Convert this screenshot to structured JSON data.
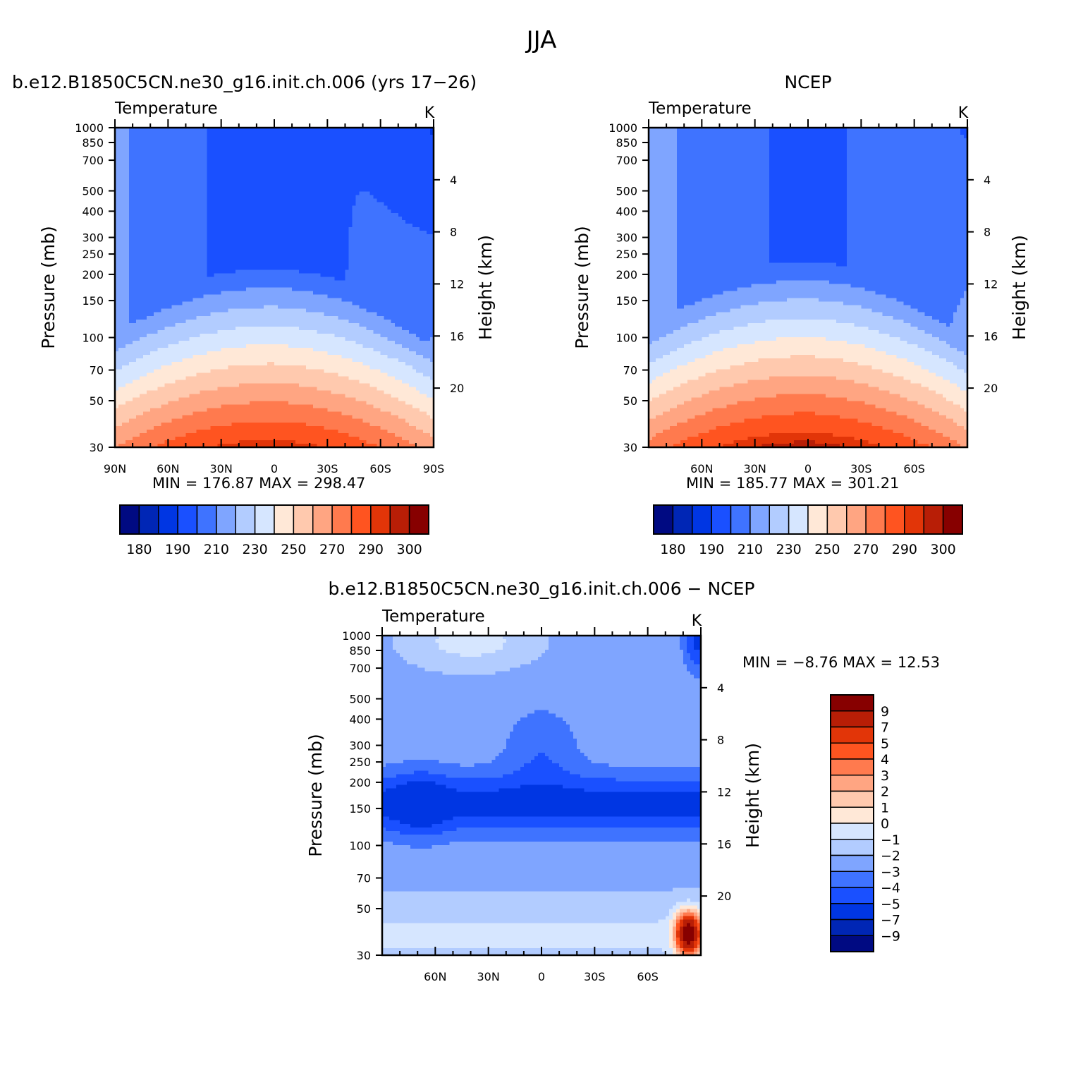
{
  "figure": {
    "title": "JJA",
    "panel_titles": {
      "model": "b.e12.B1850C5CN.ne30_g16.init.ch.006 (yrs 17−26)",
      "obs": "NCEP",
      "diff": "b.e12.B1850C5CN.ne30_g16.init.ch.006 − NCEP"
    }
  },
  "chart_data": [
    {
      "id": "model",
      "type": "heatmap",
      "variable": "Temperature",
      "units": "K",
      "ylabel": "Pressure (mb)",
      "y2label": "Height (km)",
      "x": {
        "range": [
          90,
          -90
        ],
        "ticks": [
          "90N",
          "60N",
          "30N",
          "0",
          "30S",
          "60S",
          "90S"
        ],
        "tick_values": [
          90,
          60,
          30,
          0,
          -30,
          -60,
          -90
        ]
      },
      "y": {
        "scale": "log",
        "range": [
          1000,
          30
        ],
        "ticks": [
          30,
          50,
          70,
          100,
          150,
          200,
          250,
          300,
          400,
          500,
          700,
          850,
          1000
        ]
      },
      "y2": {
        "ticks": [
          20,
          16,
          12,
          8,
          4
        ]
      },
      "stats": {
        "min_label": "MIN =",
        "min": "176.87",
        "max_label": "MAX =",
        "max": "298.47"
      },
      "colorbar": {
        "orientation": "horizontal",
        "levels": [
          180,
          185,
          190,
          200,
          210,
          220,
          230,
          240,
          250,
          260,
          270,
          280,
          290,
          295,
          300
        ],
        "labels": [
          "180",
          "190",
          "210",
          "230",
          "250",
          "270",
          "290",
          "300"
        ]
      }
    },
    {
      "id": "obs",
      "type": "heatmap",
      "variable": "Temperature",
      "units": "K",
      "ylabel": "Pressure (mb)",
      "y2label": "Height (km)",
      "x": {
        "range": [
          90,
          -90
        ],
        "ticks": [
          "60N",
          "30N",
          "0",
          "30S",
          "60S"
        ],
        "tick_values": [
          60,
          30,
          0,
          -30,
          -60
        ]
      },
      "y": {
        "scale": "log",
        "range": [
          1000,
          30
        ],
        "ticks": [
          30,
          50,
          70,
          100,
          150,
          200,
          250,
          300,
          400,
          500,
          700,
          850,
          1000
        ]
      },
      "y2": {
        "ticks": [
          20,
          16,
          12,
          8,
          4
        ]
      },
      "stats": {
        "min_label": "MIN =",
        "min": "185.77",
        "max_label": "MAX =",
        "max": "301.21"
      },
      "colorbar": {
        "orientation": "horizontal",
        "levels": [
          180,
          185,
          190,
          200,
          210,
          220,
          230,
          240,
          250,
          260,
          270,
          280,
          290,
          295,
          300
        ],
        "labels": [
          "180",
          "190",
          "210",
          "230",
          "250",
          "270",
          "290",
          "300"
        ]
      }
    },
    {
      "id": "diff",
      "type": "heatmap",
      "variable": "Temperature",
      "units": "K",
      "ylabel": "Pressure (mb)",
      "y2label": "Height (km)",
      "x": {
        "range": [
          90,
          -90
        ],
        "ticks": [
          "60N",
          "30N",
          "0",
          "30S",
          "60S"
        ],
        "tick_values": [
          60,
          30,
          0,
          -30,
          -60
        ]
      },
      "y": {
        "scale": "log",
        "range": [
          1000,
          30
        ],
        "ticks": [
          30,
          50,
          70,
          100,
          150,
          200,
          250,
          300,
          400,
          500,
          700,
          850,
          1000
        ]
      },
      "y2": {
        "ticks": [
          20,
          16,
          12,
          8,
          4
        ]
      },
      "stats": {
        "min_label": "MIN =",
        "min": "−8.76",
        "max_label": "MAX =",
        "max": "12.53"
      },
      "colorbar": {
        "orientation": "vertical",
        "levels": [
          -9,
          -7,
          -5,
          -4,
          -3,
          -2,
          -1,
          0,
          1,
          2,
          3,
          4,
          5,
          7,
          9
        ],
        "labels": [
          "9",
          "7",
          "5",
          "4",
          "3",
          "2",
          "1",
          "0",
          "−1",
          "−2",
          "−3",
          "−4",
          "−5",
          "−7",
          "−9"
        ]
      }
    }
  ],
  "palette": [
    "#000a82",
    "#0026b5",
    "#0036e3",
    "#1a50ff",
    "#3f73ff",
    "#7fa5ff",
    "#b2ccff",
    "#d6e6ff",
    "#ffe8d7",
    "#ffc9ae",
    "#ffa582",
    "#ff7a4e",
    "#ff5420",
    "#e23508",
    "#b81e06",
    "#870000"
  ]
}
